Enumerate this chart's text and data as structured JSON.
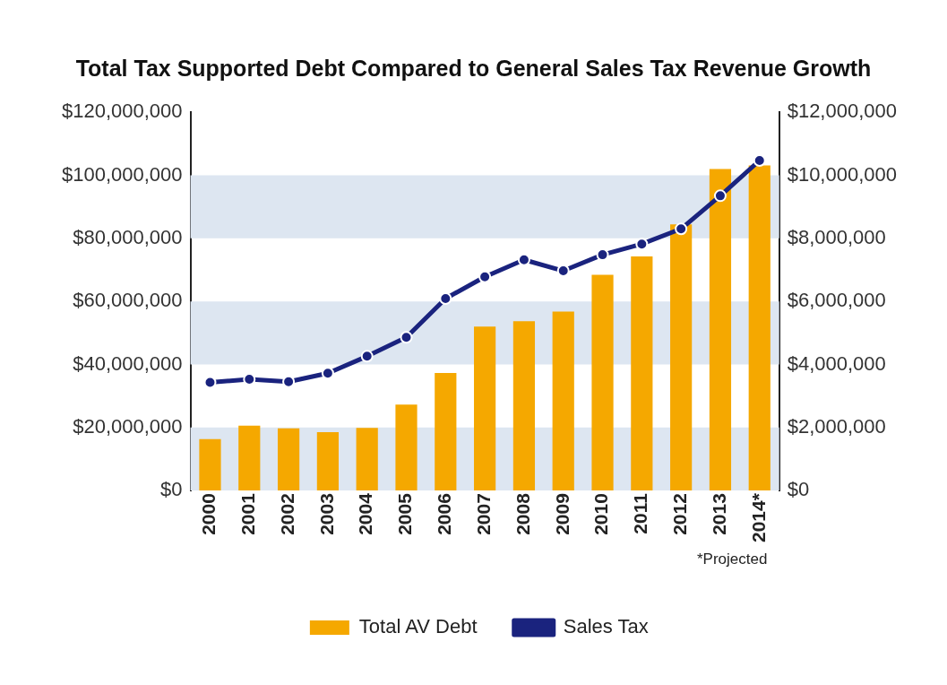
{
  "chart_data": {
    "type": "bar",
    "title": "Total Tax Supported Debt Compared to General Sales Tax Revenue Growth",
    "categories": [
      "2000",
      "2001",
      "2002",
      "2003",
      "2004",
      "2005",
      "2006",
      "2007",
      "2008",
      "2009",
      "2010",
      "2011",
      "2012",
      "2013",
      "2014*"
    ],
    "series": [
      {
        "name": "Total AV Debt",
        "type": "bar",
        "color": "#f5a800",
        "values": [
          16300000,
          20600000,
          19700000,
          18500000,
          19900000,
          27300000,
          37300000,
          52000000,
          53700000,
          56800000,
          68400000,
          74300000,
          84400000,
          102000000,
          103100000
        ]
      },
      {
        "name": "Sales Tax",
        "type": "line",
        "axis": "y2",
        "color": "#1a237e",
        "values": [
          3430000,
          3530000,
          3450000,
          3720000,
          4260000,
          4860000,
          6090000,
          6780000,
          7320000,
          6970000,
          7480000,
          7820000,
          8300000,
          9350000,
          10470000
        ]
      }
    ],
    "ylim": [
      0,
      120000000
    ],
    "yticks": [
      {
        "value": 0,
        "label": "$0"
      },
      {
        "value": 20000000,
        "label": "$20,000,000"
      },
      {
        "value": 40000000,
        "label": "$40,000,000"
      },
      {
        "value": 60000000,
        "label": "$60,000,000"
      },
      {
        "value": 80000000,
        "label": "$80,000,000"
      },
      {
        "value": 100000000,
        "label": "$100,000,000"
      },
      {
        "value": 120000000,
        "label": "$120,000,000"
      }
    ],
    "y2lim": [
      0,
      12000000
    ],
    "y2ticks": [
      {
        "value": 0,
        "label": "$0"
      },
      {
        "value": 2000000,
        "label": "$2,000,000"
      },
      {
        "value": 4000000,
        "label": "$4,000,000"
      },
      {
        "value": 6000000,
        "label": "$6,000,000"
      },
      {
        "value": 8000000,
        "label": "$8,000,000"
      },
      {
        "value": 10000000,
        "label": "$10,000,000"
      },
      {
        "value": 12000000,
        "label": "$12,000,000"
      }
    ],
    "bands": [
      {
        "axis": "y",
        "from": 0,
        "to": 20000000,
        "color": "#dde6f1"
      },
      {
        "axis": "y",
        "from": 40000000,
        "to": 60000000,
        "color": "#dde6f1"
      },
      {
        "axis": "y",
        "from": 80000000,
        "to": 100000000,
        "color": "#dde6f1"
      }
    ],
    "marker": "circle",
    "line_style": "solid",
    "legend": "bottom",
    "grid": false,
    "annotations": [
      "*Projected"
    ]
  }
}
